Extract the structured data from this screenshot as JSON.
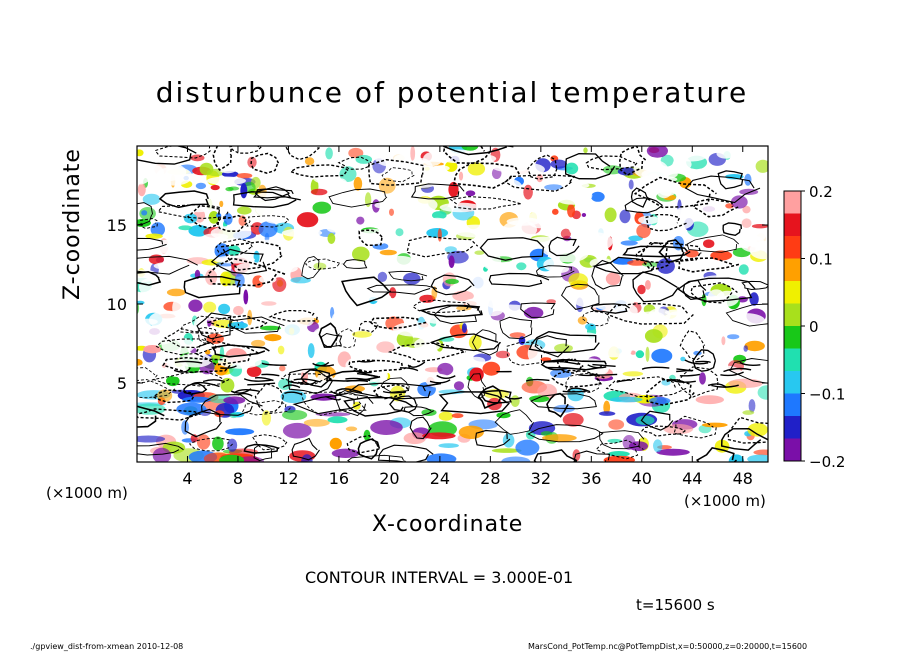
{
  "title": "disturbunce of potential temperature",
  "x_axis_label": "X-coordinate",
  "y_axis_label": "Z-coordinate",
  "x_unit_left": "(×1000 m)",
  "x_unit_right": "(×1000 m)",
  "contour_interval": "CONTOUR INTERVAL = 3.000E-01",
  "time_label": "t=15600 s",
  "footer_left": "./gpview_dist-from-xmean   2010-12-08",
  "footer_right": "MarsCond_PotTemp.nc@PotTempDist,x=0:50000,z=0:20000,t=15600",
  "colors": {
    "colormap": [
      "#7a0fa8",
      "#2020c8",
      "#1e78ff",
      "#28c8f0",
      "#20e0b0",
      "#18c818",
      "#a8e01c",
      "#f0f000",
      "#ffa000",
      "#ff3c14",
      "#e6141e",
      "#ffa0a0",
      "#ffffff"
    ]
  },
  "chart_data": {
    "type": "heatmap",
    "title": "disturbunce of potential temperature",
    "xlabel": "X-coordinate",
    "ylabel": "Z-coordinate",
    "x_ticks": [
      4,
      8,
      12,
      16,
      20,
      24,
      28,
      32,
      36,
      40,
      44,
      48
    ],
    "y_ticks": [
      5,
      10,
      15
    ],
    "xlim": [
      0,
      50
    ],
    "ylim": [
      0,
      20
    ],
    "x_units": "(×1000 m)",
    "colorbar": {
      "range": [
        -0.2,
        0.2
      ],
      "ticks": [
        0.2,
        0.1,
        0,
        -0.1,
        -0.2
      ],
      "tick_labels": [
        "0.2",
        "0.1",
        "0",
        "−0.1",
        "−0.2"
      ]
    },
    "contour_interval": 0.3,
    "overlay": "contour lines (solid positive, dashed negative)"
  }
}
